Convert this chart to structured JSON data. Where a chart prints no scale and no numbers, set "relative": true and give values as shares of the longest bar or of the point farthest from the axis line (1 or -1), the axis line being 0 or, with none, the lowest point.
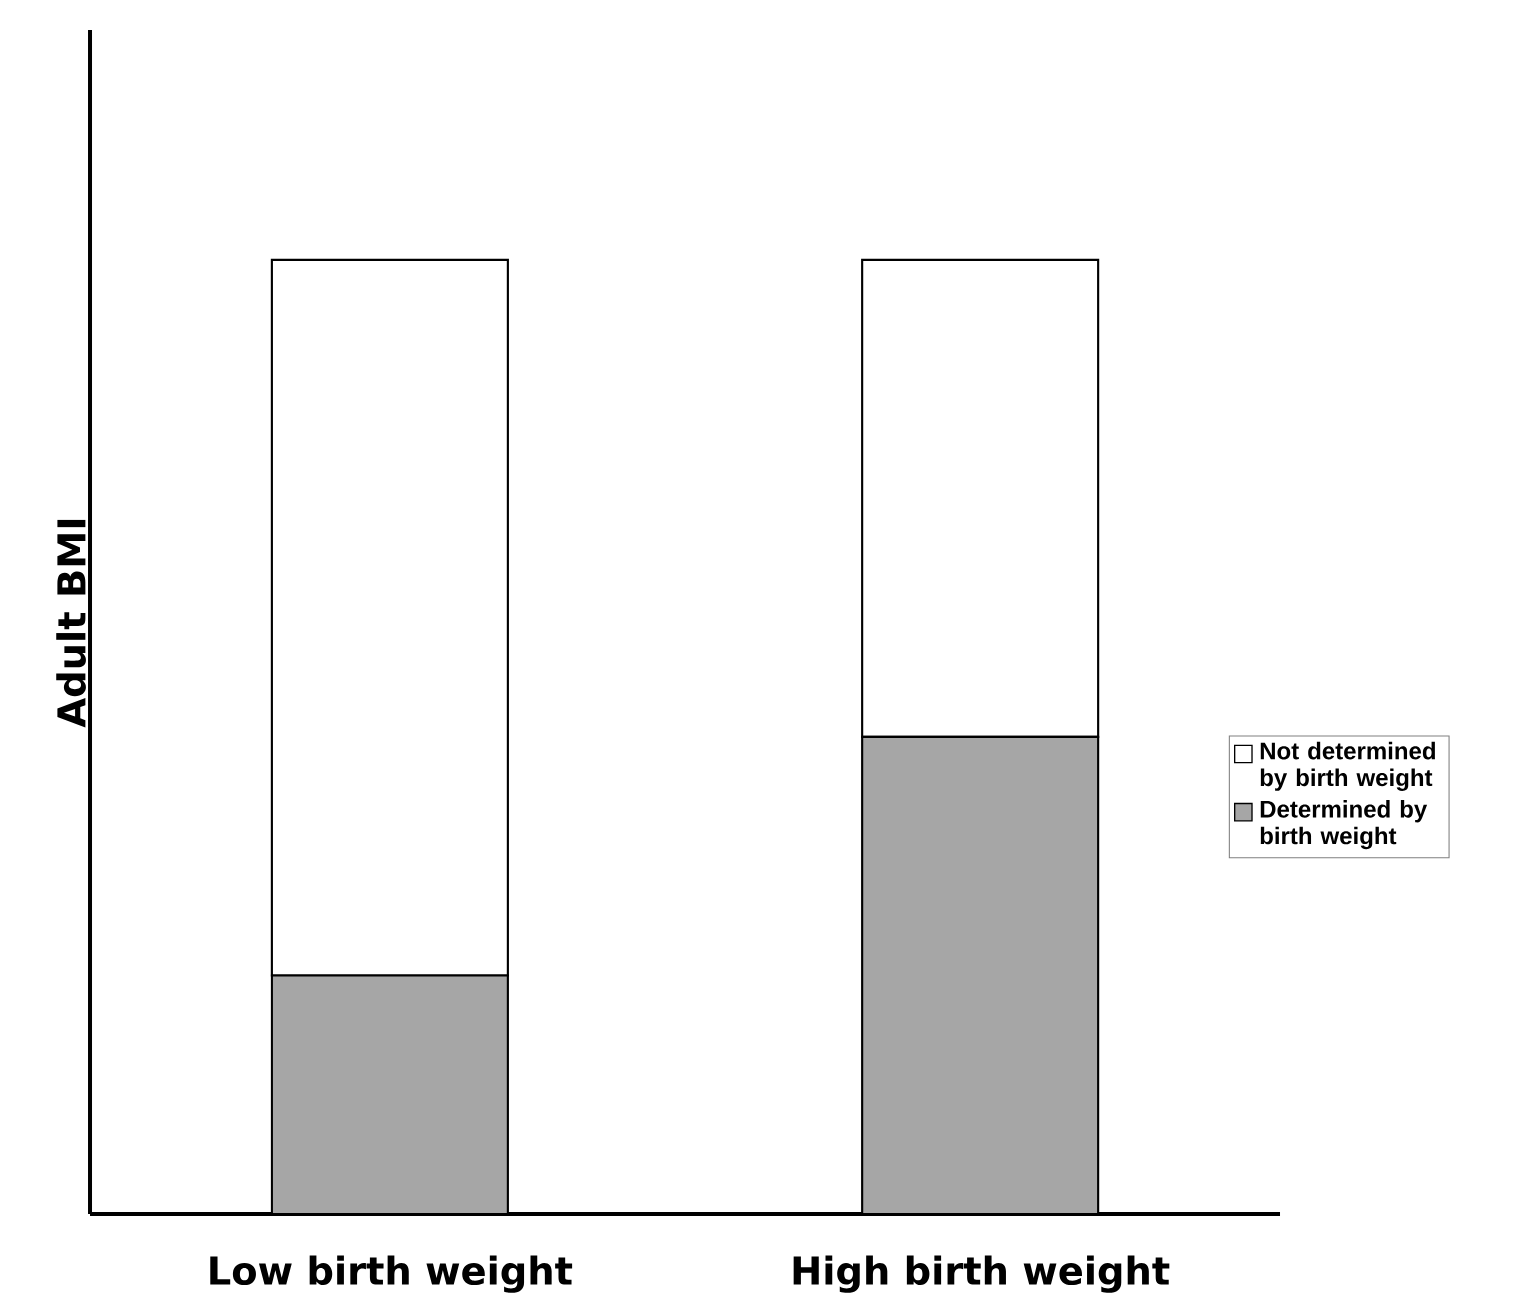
{
  "chart_data": {
    "type": "bar",
    "stacked": true,
    "relative": true,
    "ylabel": "Adult BMI",
    "categories": [
      "Low birth weight",
      "High birth weight"
    ],
    "legend": "right",
    "series": [
      {
        "name": "Determined by birth weight",
        "color": "#a6a6a6",
        "values": [
          0.25,
          0.5
        ]
      },
      {
        "name": "Not determined by birth weight",
        "color": "#ffffff",
        "values": [
          0.75,
          0.5
        ]
      }
    ]
  }
}
